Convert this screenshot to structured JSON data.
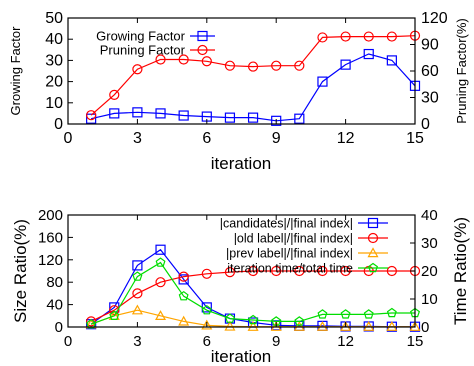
{
  "chart_data": [
    {
      "type": "line",
      "xlabel": "iteration",
      "ylabel": "Growing Factor",
      "ylabel_right": "Pruning Factor(%)",
      "xlim": [
        0,
        15
      ],
      "xticks": [
        0,
        3,
        6,
        9,
        12,
        15
      ],
      "xtick_labels": [
        "0",
        "3",
        "6",
        "9",
        "12",
        "15"
      ],
      "ylim": [
        0,
        50
      ],
      "yticks": [
        0,
        10,
        20,
        30,
        40,
        50
      ],
      "ytick_labels": [
        "0",
        "10",
        "20",
        "30",
        "40",
        "50"
      ],
      "ylim_right": [
        0,
        120
      ],
      "yticks_right": [
        0,
        30,
        60,
        90,
        120
      ],
      "ytick_labels_right": [
        "0",
        "30",
        "60",
        "90",
        "120"
      ],
      "grid": false,
      "legend_position": "top-left",
      "x": [
        1,
        2,
        3,
        4,
        5,
        6,
        7,
        8,
        9,
        10,
        11,
        12,
        13,
        14,
        15
      ],
      "series": [
        {
          "name": "Growing Factor",
          "axis": "left",
          "marker": "square",
          "color": "#0000ff",
          "values": [
            2.5,
            5,
            5.5,
            5,
            4,
            3.5,
            3,
            3,
            1.5,
            2.5,
            20,
            28,
            33,
            30,
            18
          ]
        },
        {
          "name": "Pruning Factor",
          "axis": "right",
          "marker": "circle",
          "color": "#ff0000",
          "values": [
            10,
            33,
            62,
            73,
            73,
            71,
            66,
            65,
            66,
            66,
            98,
            99,
            99,
            99,
            100
          ]
        }
      ]
    },
    {
      "type": "line",
      "xlabel": "iteration",
      "ylabel": "Size Ratio(%)",
      "ylabel_right": "Time Ratio(%)",
      "xlim": [
        0,
        15
      ],
      "xticks": [
        0,
        3,
        6,
        9,
        12,
        15
      ],
      "xtick_labels": [
        "0",
        "3",
        "6",
        "9",
        "12",
        "15"
      ],
      "ylim": [
        0,
        200
      ],
      "yticks": [
        0,
        40,
        80,
        120,
        160,
        200
      ],
      "ytick_labels": [
        "0",
        "40",
        "80",
        "120",
        "160",
        "200"
      ],
      "ylim_right": [
        0,
        40
      ],
      "yticks_right": [
        0,
        10,
        20,
        30,
        40
      ],
      "ytick_labels_right": [
        "0",
        "10",
        "20",
        "30",
        "40"
      ],
      "grid": false,
      "legend_position": "top-right",
      "x": [
        1,
        2,
        3,
        4,
        5,
        6,
        7,
        8,
        9,
        10,
        11,
        12,
        13,
        14,
        15
      ],
      "series": [
        {
          "name": "|candidates|/|final index|",
          "axis": "left",
          "marker": "square",
          "color": "#0000ff",
          "values": [
            5,
            35,
            110,
            138,
            85,
            35,
            15,
            8,
            3,
            2,
            2,
            1,
            1,
            0.5,
            0.5
          ]
        },
        {
          "name": "|old label|/|final index|",
          "axis": "left",
          "marker": "circle",
          "color": "#ff0000",
          "values": [
            10,
            30,
            60,
            80,
            90,
            95,
            98,
            100,
            100,
            100,
            100,
            100,
            100,
            100,
            100
          ]
        },
        {
          "name": "|prev label|/|final index|",
          "axis": "left",
          "marker": "triangle",
          "color": "#ffa500",
          "values": [
            5,
            20,
            30,
            20,
            10,
            3,
            1,
            0.5,
            0.5,
            0.5,
            0.5,
            0.5,
            0.5,
            0.5,
            0.5
          ]
        },
        {
          "name": "iteration time/total time",
          "axis": "right",
          "marker": "pentagon",
          "color": "#00dd00",
          "values": [
            1,
            4,
            18,
            23,
            11,
            6,
            3,
            2.5,
            2,
            2,
            4.5,
            4.5,
            4.5,
            5,
            5
          ]
        }
      ]
    }
  ]
}
